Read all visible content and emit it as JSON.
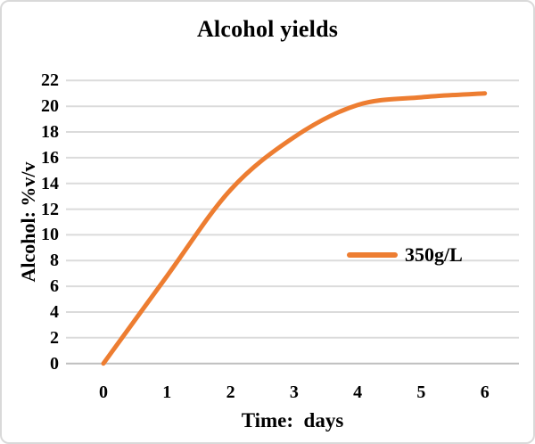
{
  "chart_data": {
    "type": "line",
    "title": "Alcohol yields",
    "xlabel": "Time:  days",
    "ylabel": "Alcohol: %v/v",
    "x": [
      0,
      1,
      2,
      3,
      4,
      5,
      6
    ],
    "x_tick_labels": [
      "0",
      "1",
      "2",
      "3",
      "4",
      "5",
      "6"
    ],
    "y_ticks": [
      0,
      2,
      4,
      6,
      8,
      10,
      12,
      14,
      16,
      18,
      20,
      22
    ],
    "xlim": [
      0,
      6
    ],
    "ylim": [
      0,
      22
    ],
    "grid": true,
    "smoothed_line": true,
    "legend": {
      "position": "inside-right",
      "entries": [
        {
          "label": "350g/L",
          "color": "#ED7D31"
        }
      ]
    },
    "series": [
      {
        "name": "350g/L",
        "color": "#ED7D31",
        "values": [
          0,
          6.8,
          13.5,
          17.6,
          20.1,
          20.7,
          21.0
        ]
      }
    ],
    "colors": {
      "gridline": "#DBDBDB",
      "axis_line": "#BFBFBF",
      "text": "#000000",
      "background": "#FFFFFF",
      "frame_border": "#D9D9D9"
    }
  }
}
